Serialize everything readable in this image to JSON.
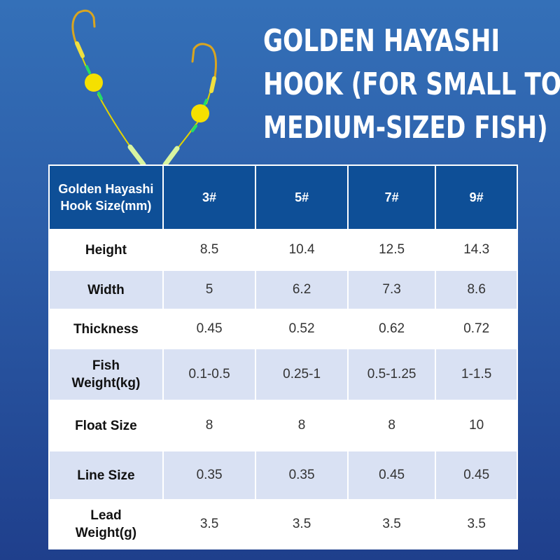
{
  "title": [
    "GOLDEN HAYASHI",
    "HOOK (FOR SMALL TO",
    "MEDIUM-SIZED FISH)"
  ],
  "table": {
    "header": [
      "Golden Hayashi Hook Size(mm)",
      "3#",
      "5#",
      "7#",
      "9#"
    ],
    "rows": [
      {
        "label": "Height",
        "values": [
          "8.5",
          "10.4",
          "12.5",
          "14.3"
        ]
      },
      {
        "label": "Width",
        "values": [
          "5",
          "6.2",
          "7.3",
          "8.6"
        ]
      },
      {
        "label": "Thickness",
        "values": [
          "0.45",
          "0.52",
          "0.62",
          "0.72"
        ]
      },
      {
        "label": "Fish Weight(kg)",
        "values": [
          "0.1-0.5",
          "0.25-1",
          "0.5-1.25",
          "1-1.5"
        ]
      },
      {
        "label": "Float Size",
        "values": [
          "8",
          "8",
          "8",
          "10"
        ]
      },
      {
        "label": "Line Size",
        "values": [
          "0.35",
          "0.35",
          "0.45",
          "0.45"
        ]
      },
      {
        "label": "Lead Weight(g)",
        "values": [
          "3.5",
          "3.5",
          "3.5",
          "3.5"
        ]
      }
    ]
  },
  "colors": {
    "header": "#0e4f97",
    "row_alt": "#d9e1f3",
    "float": "#f5e000",
    "hook": "#d9a520"
  }
}
